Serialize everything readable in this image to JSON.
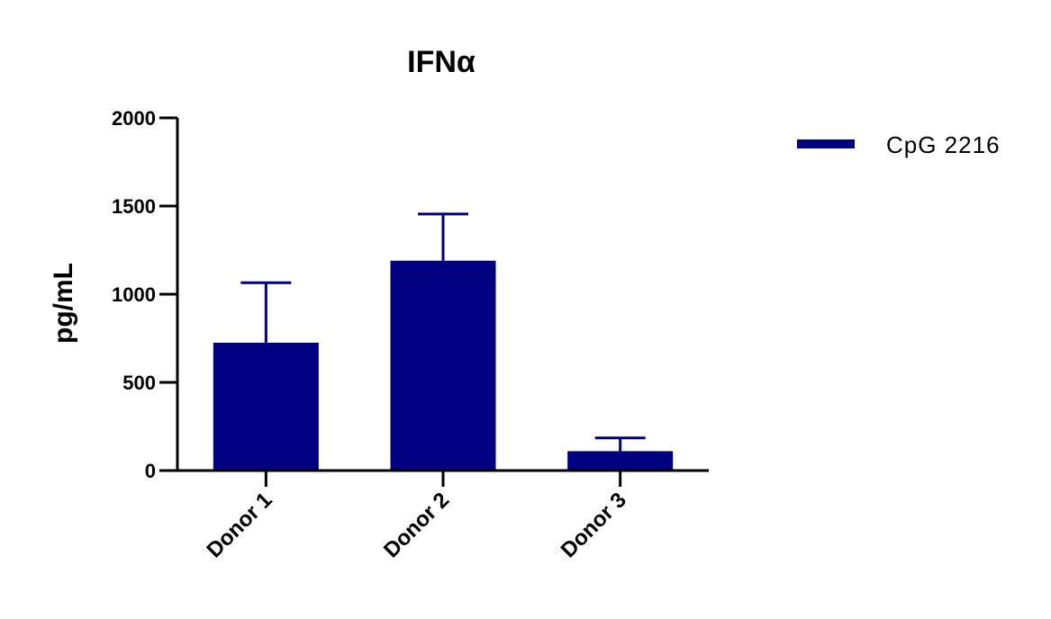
{
  "chart_data": {
    "type": "bar",
    "title": "IFNα",
    "xlabel": "",
    "ylabel": "pg/mL",
    "categories": [
      "Donor 1",
      "Donor 2",
      "Donor 3"
    ],
    "series": [
      {
        "name": "CpG 2216",
        "values": [
          725,
          1190,
          110
        ],
        "error_upper": [
          1065,
          1455,
          185
        ],
        "color": "#000080"
      }
    ],
    "ylim": [
      0,
      2000
    ],
    "yticks": [
      0,
      500,
      1000,
      1500,
      2000
    ],
    "ytick_labels": [
      "0",
      "500",
      "1000",
      "1500",
      "2000"
    ],
    "grid": false,
    "legend_position": "top-right"
  }
}
